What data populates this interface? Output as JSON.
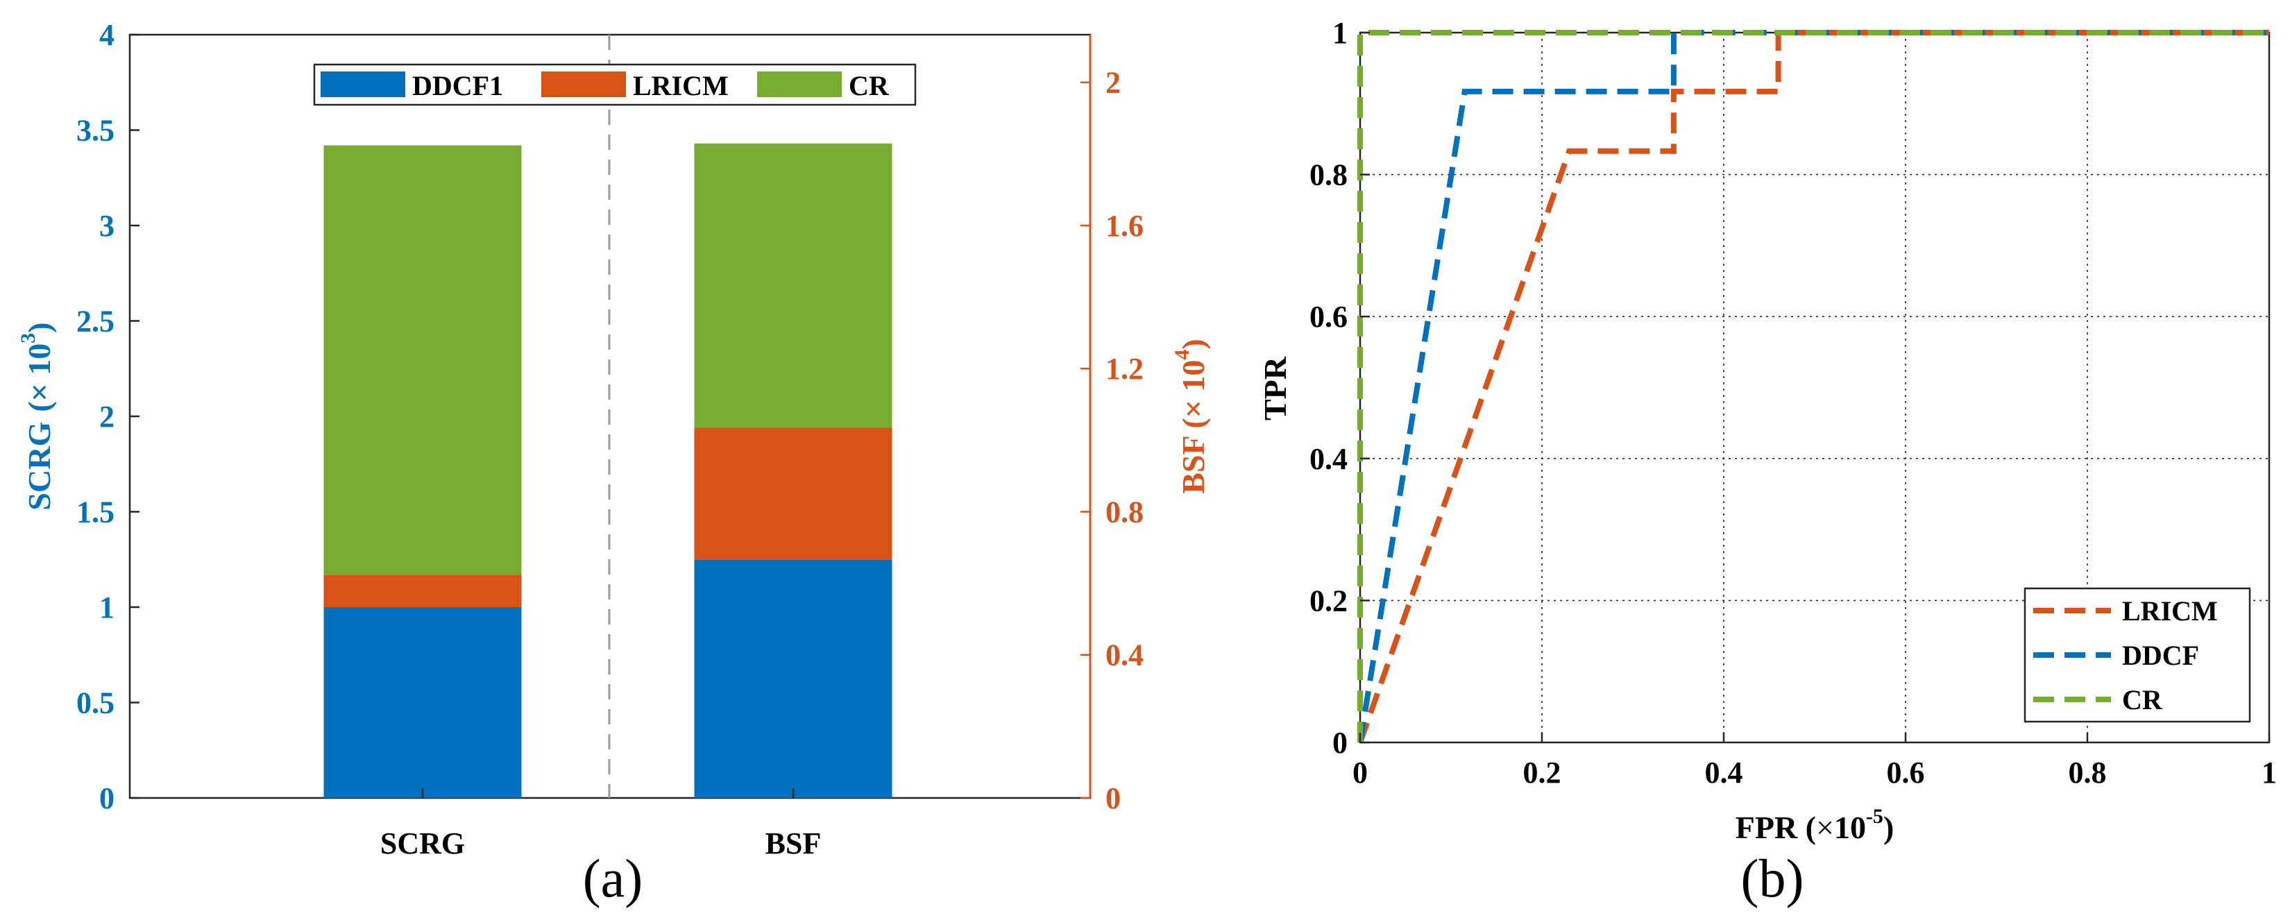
{
  "colors": {
    "blue": "#0072BD",
    "orange": "#D95319",
    "green": "#77AC30",
    "axis": "#262626",
    "grid": "#262626"
  },
  "chart_data": [
    {
      "type": "bar",
      "subtype": "stacked",
      "caption": "(a)",
      "categories": [
        "SCRG",
        "BSF"
      ],
      "series": [
        {
          "name": "DDCF1",
          "values": [
            1.0,
            1.25
          ]
        },
        {
          "name": "LRICM",
          "values": [
            0.17,
            0.69
          ]
        },
        {
          "name": "CR",
          "values": [
            2.25,
            1.49
          ]
        }
      ],
      "ylabel_left": {
        "main": "SCRG",
        "paren_open": "(× 10",
        "exp": "3",
        "paren_close": ")"
      },
      "ylabel_right": {
        "main": "BSF (× 10",
        "exp": "4",
        "close": ")"
      },
      "ylim_left": [
        0,
        4
      ],
      "yticks_left": [
        "0",
        "0.5",
        "1",
        "1.5",
        "2",
        "2.5",
        "3",
        "3.5",
        "4"
      ],
      "ylim_right": [
        0,
        2.1333
      ],
      "yticks_right": [
        "0",
        "0.4",
        "0.8",
        "1.2",
        "1.6",
        "2"
      ],
      "legend": [
        "DDCF1",
        "LRICM",
        "CR"
      ],
      "legend_position": "top-center",
      "grid": false
    },
    {
      "type": "line",
      "caption": "(b)",
      "xlabel": {
        "main": "FPR (",
        "sym": "×",
        "base": "10",
        "exp": "-5",
        "close": ")"
      },
      "ylabel": "TPR",
      "xlim": [
        0,
        1
      ],
      "ylim": [
        0,
        1
      ],
      "xticks": [
        "0",
        "0.2",
        "0.4",
        "0.6",
        "0.8",
        "1"
      ],
      "yticks": [
        "0",
        "0.2",
        "0.4",
        "0.6",
        "0.8",
        "1"
      ],
      "grid": true,
      "legend": [
        "LRICM",
        "DDCF",
        "CR"
      ],
      "legend_position": "bottom-right",
      "series": [
        {
          "name": "LRICM",
          "x": [
            0,
            0.23,
            0.345,
            0.345,
            0.46,
            0.46,
            1
          ],
          "y": [
            0,
            0.833,
            0.833,
            0.917,
            0.917,
            1,
            1
          ]
        },
        {
          "name": "DDCF",
          "x": [
            0,
            0.115,
            0.345,
            0.345,
            1
          ],
          "y": [
            0,
            0.917,
            0.917,
            1,
            1
          ]
        },
        {
          "name": "CR",
          "x": [
            0,
            0,
            1
          ],
          "y": [
            0,
            1,
            1
          ]
        }
      ]
    }
  ]
}
